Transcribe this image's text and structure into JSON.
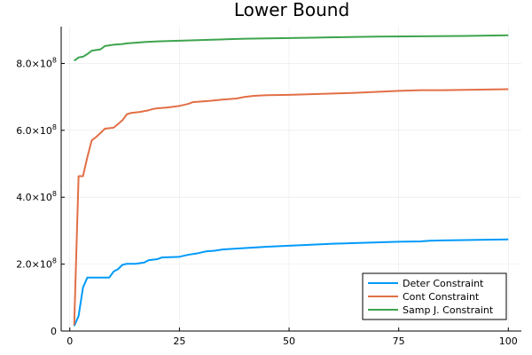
{
  "chart_data": {
    "type": "line",
    "title": "Lower Bound",
    "xlabel": "",
    "ylabel": "",
    "xlim": [
      -1.97,
      102.97
    ],
    "ylim": [
      0,
      910000000
    ],
    "x_ticks": [
      0,
      25,
      50,
      75,
      100
    ],
    "x_tick_labels": [
      "0",
      "25",
      "50",
      "75",
      "100"
    ],
    "y_ticks": [
      0,
      200000000,
      400000000,
      600000000,
      800000000
    ],
    "y_tick_labels": [
      {
        "mantissa": "0",
        "exponent": ""
      },
      {
        "mantissa": "2.0×10",
        "exponent": "8"
      },
      {
        "mantissa": "4.0×10",
        "exponent": "8"
      },
      {
        "mantissa": "6.0×10",
        "exponent": "8"
      },
      {
        "mantissa": "8.0×10",
        "exponent": "8"
      }
    ],
    "grid": true,
    "legend_position": "bottom-right",
    "series": [
      {
        "name": "Deter Constraint",
        "color": "#009AF9",
        "points": [
          [
            1,
            15000000
          ],
          [
            2,
            45000000
          ],
          [
            3,
            130000000
          ],
          [
            4,
            160000000
          ],
          [
            6,
            160000000
          ],
          [
            9,
            160000000
          ],
          [
            10,
            178000000
          ],
          [
            11,
            185000000
          ],
          [
            12,
            198000000
          ],
          [
            13,
            201000000
          ],
          [
            15,
            201000000
          ],
          [
            17,
            205000000
          ],
          [
            18,
            212000000
          ],
          [
            20,
            215000000
          ],
          [
            21,
            220000000
          ],
          [
            25,
            222000000
          ],
          [
            27,
            228000000
          ],
          [
            29,
            232000000
          ],
          [
            31,
            238000000
          ],
          [
            33,
            240000000
          ],
          [
            35,
            244000000
          ],
          [
            40,
            248000000
          ],
          [
            45,
            252000000
          ],
          [
            50,
            255000000
          ],
          [
            55,
            258000000
          ],
          [
            60,
            261000000
          ],
          [
            65,
            263000000
          ],
          [
            70,
            265000000
          ],
          [
            75,
            267000000
          ],
          [
            80,
            268000000
          ],
          [
            82,
            270000000
          ],
          [
            85,
            271000000
          ],
          [
            90,
            272000000
          ],
          [
            95,
            273000000
          ],
          [
            100,
            274000000
          ]
        ]
      },
      {
        "name": "Cont Constraint",
        "color": "#E26F46",
        "points": [
          [
            1,
            18000000
          ],
          [
            2,
            463000000
          ],
          [
            3,
            463000000
          ],
          [
            4,
            520000000
          ],
          [
            5,
            570000000
          ],
          [
            6,
            580000000
          ],
          [
            7,
            592000000
          ],
          [
            8,
            605000000
          ],
          [
            10,
            608000000
          ],
          [
            12,
            630000000
          ],
          [
            13,
            648000000
          ],
          [
            14,
            652000000
          ],
          [
            16,
            655000000
          ],
          [
            18,
            660000000
          ],
          [
            19,
            664000000
          ],
          [
            20,
            666000000
          ],
          [
            22,
            668000000
          ],
          [
            25,
            673000000
          ],
          [
            27,
            679000000
          ],
          [
            28,
            684000000
          ],
          [
            30,
            686000000
          ],
          [
            32,
            688000000
          ],
          [
            35,
            692000000
          ],
          [
            38,
            695000000
          ],
          [
            40,
            700000000
          ],
          [
            42,
            703000000
          ],
          [
            45,
            705000000
          ],
          [
            50,
            706000000
          ],
          [
            55,
            708000000
          ],
          [
            60,
            710000000
          ],
          [
            65,
            712000000
          ],
          [
            70,
            715000000
          ],
          [
            75,
            718000000
          ],
          [
            80,
            720000000
          ],
          [
            85,
            720000000
          ],
          [
            90,
            721000000
          ],
          [
            95,
            722000000
          ],
          [
            100,
            723000000
          ]
        ]
      },
      {
        "name": "Samp J. Constraint",
        "color": "#3DA44D",
        "points": [
          [
            1,
            808000000
          ],
          [
            2,
            818000000
          ],
          [
            3,
            820000000
          ],
          [
            4,
            828000000
          ],
          [
            5,
            838000000
          ],
          [
            6,
            840000000
          ],
          [
            7,
            842000000
          ],
          [
            8,
            852000000
          ],
          [
            10,
            856000000
          ],
          [
            12,
            858000000
          ],
          [
            13,
            860000000
          ],
          [
            15,
            862000000
          ],
          [
            17,
            864000000
          ],
          [
            20,
            866000000
          ],
          [
            25,
            868000000
          ],
          [
            30,
            870000000
          ],
          [
            35,
            872000000
          ],
          [
            40,
            874000000
          ],
          [
            50,
            876000000
          ],
          [
            55,
            877000000
          ],
          [
            60,
            878000000
          ],
          [
            65,
            879000000
          ],
          [
            70,
            880000000
          ],
          [
            80,
            881000000
          ],
          [
            90,
            882000000
          ],
          [
            100,
            884000000
          ]
        ]
      }
    ]
  }
}
